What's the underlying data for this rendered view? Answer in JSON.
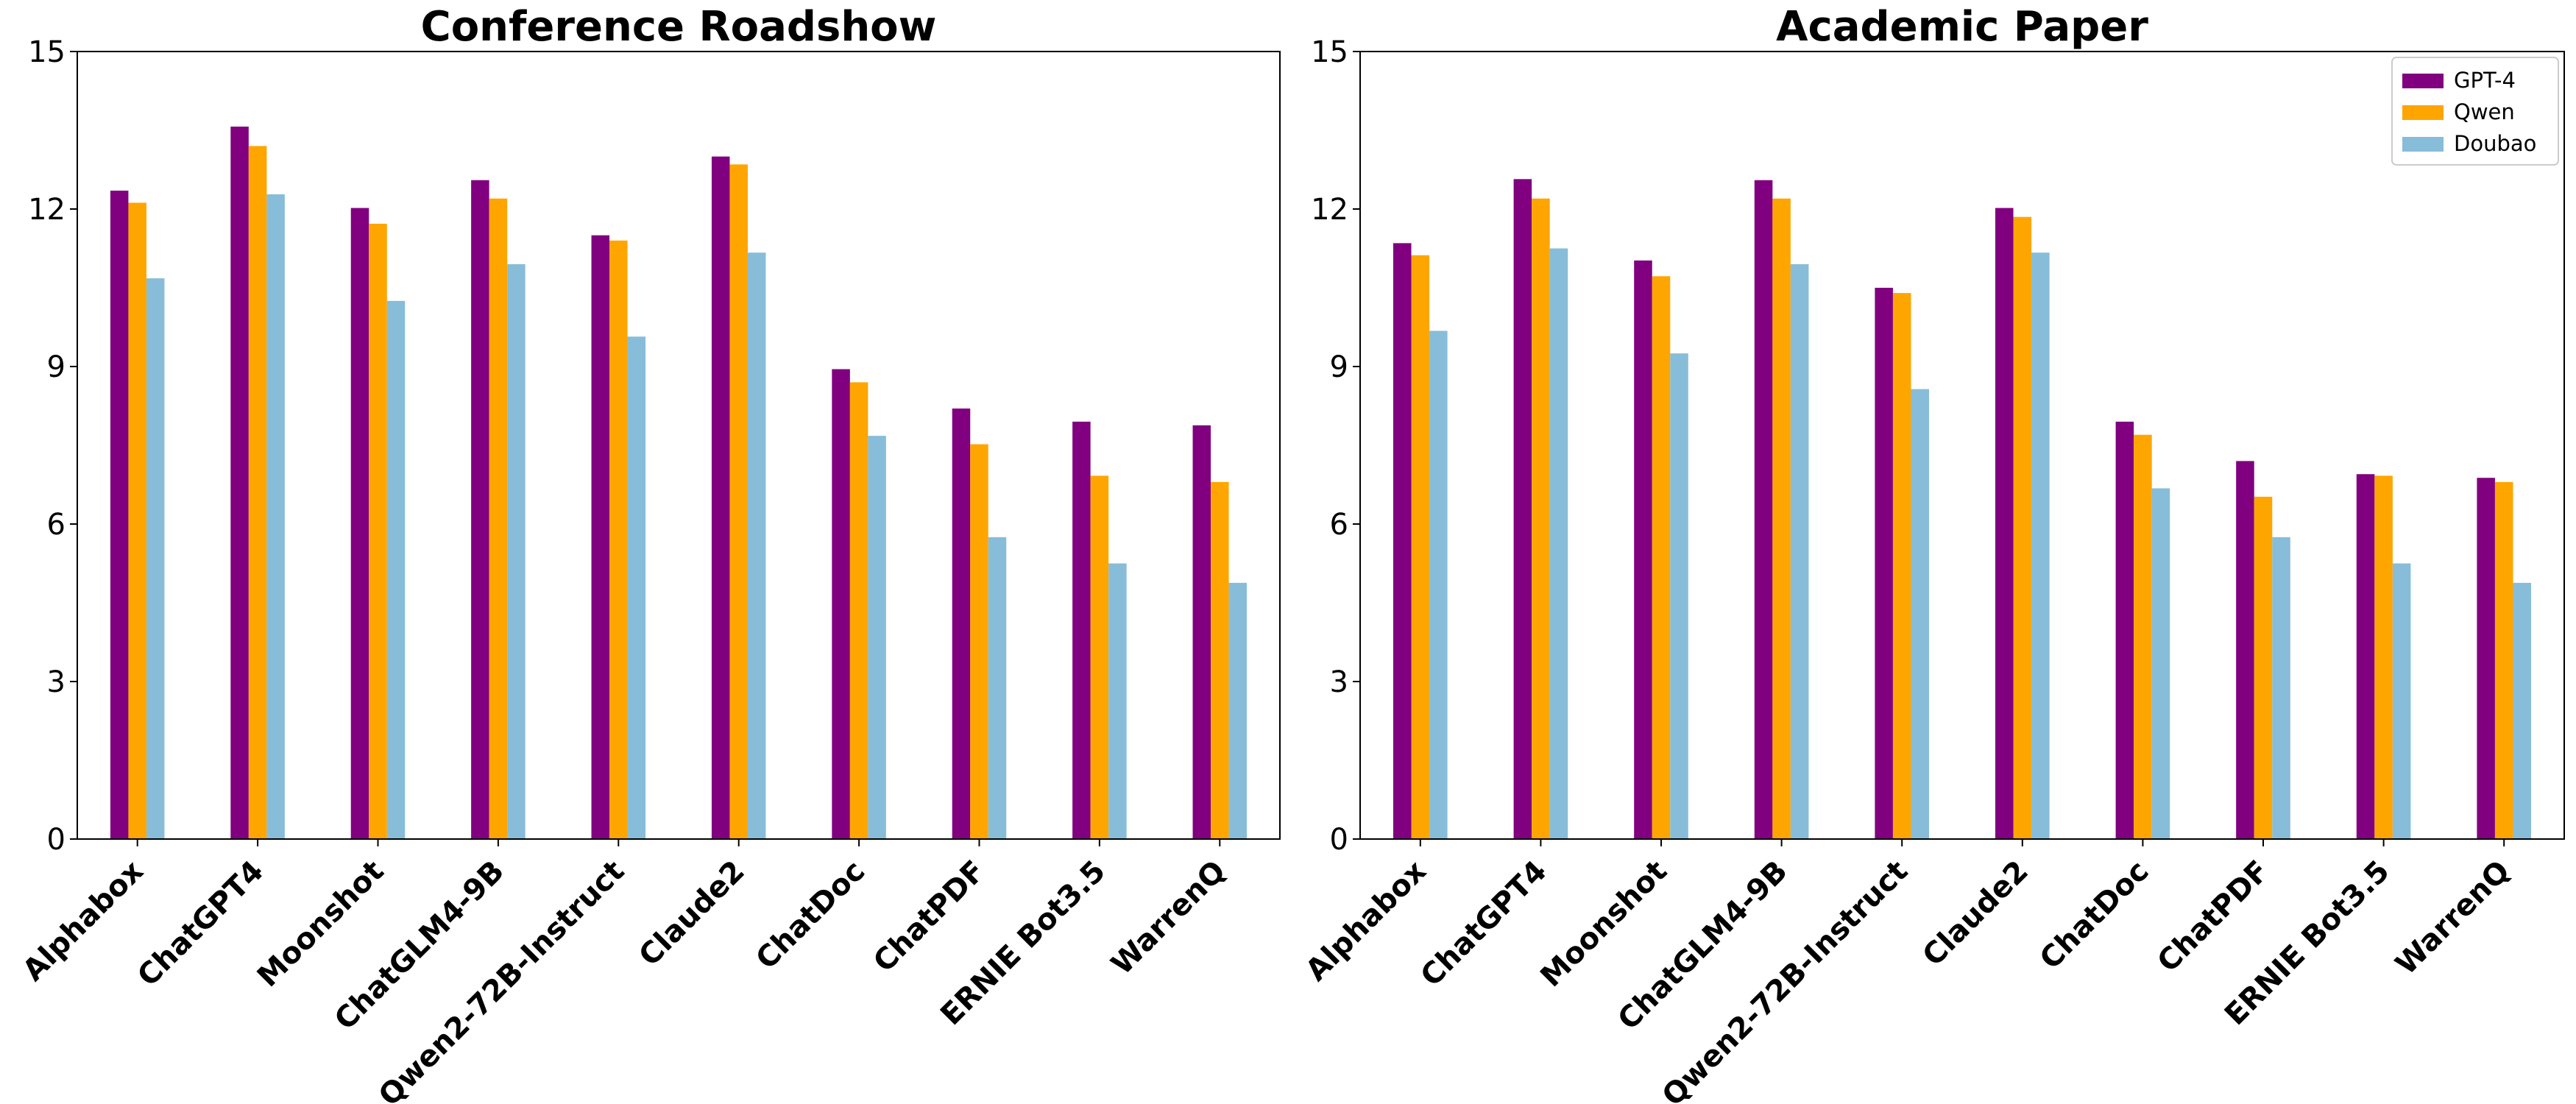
{
  "chart_data": [
    {
      "type": "bar",
      "title": "Conference Roadshow",
      "xlabel": "",
      "ylabel": "",
      "ylim": [
        0,
        15
      ],
      "yticks": [
        0,
        3,
        6,
        9,
        12,
        15
      ],
      "categories": [
        "Alphabox",
        "ChatGPT4",
        "Moonshot",
        "ChatGLM4-9B",
        "Qwen2-72B-Instruct",
        "Claude2",
        "ChatDoc",
        "ChatPDF",
        "ERNIE Bot3.5",
        "WarrenQ"
      ],
      "series": [
        {
          "name": "GPT-4",
          "color": "#800080",
          "values": [
            12.35,
            13.57,
            12.02,
            12.55,
            11.5,
            13.0,
            8.95,
            8.2,
            7.95,
            7.88
          ]
        },
        {
          "name": "Qwen",
          "color": "#FFA500",
          "values": [
            12.12,
            13.2,
            11.72,
            12.2,
            11.4,
            12.85,
            8.7,
            7.52,
            6.92,
            6.8
          ]
        },
        {
          "name": "Doubao",
          "color": "#87BDD8",
          "values": [
            10.68,
            12.28,
            10.25,
            10.95,
            9.57,
            11.17,
            7.68,
            5.75,
            5.25,
            4.88
          ]
        }
      ],
      "legend": false,
      "grid": false
    },
    {
      "type": "bar",
      "title": "Academic Paper",
      "xlabel": "",
      "ylabel": "",
      "ylim": [
        0,
        15
      ],
      "yticks": [
        0,
        3,
        6,
        9,
        12,
        15
      ],
      "categories": [
        "Alphabox",
        "ChatGPT4",
        "Moonshot",
        "ChatGLM4-9B",
        "Qwen2-72B-Instruct",
        "Claude2",
        "ChatDoc",
        "ChatPDF",
        "ERNIE Bot3.5",
        "WarrenQ"
      ],
      "series": [
        {
          "name": "GPT-4",
          "color": "#800080",
          "values": [
            11.35,
            12.57,
            11.02,
            12.55,
            10.5,
            12.02,
            7.95,
            7.2,
            6.95,
            6.88
          ]
        },
        {
          "name": "Qwen",
          "color": "#FFA500",
          "values": [
            11.12,
            12.2,
            10.72,
            12.2,
            10.4,
            11.85,
            7.7,
            6.52,
            6.92,
            6.8
          ]
        },
        {
          "name": "Doubao",
          "color": "#87BDD8",
          "values": [
            9.68,
            11.25,
            9.25,
            10.95,
            8.57,
            11.17,
            6.68,
            5.75,
            5.25,
            4.88
          ]
        }
      ],
      "legend": true,
      "legend_position": "top-right",
      "grid": false
    }
  ]
}
